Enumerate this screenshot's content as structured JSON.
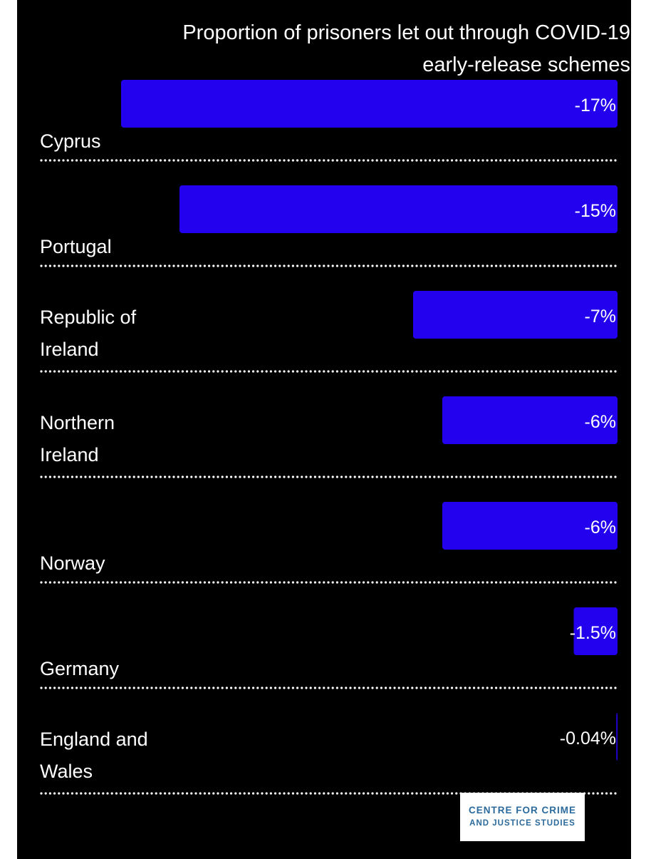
{
  "chart_data": {
    "type": "bar",
    "title": "Proportion of prisoners let out through COVID-19 early-release schemes",
    "categories": [
      "Cyprus",
      "Portugal",
      "Republic of Ireland",
      "Northern Ireland",
      "Norway",
      "Germany",
      "England and Wales"
    ],
    "category_lines": [
      [
        "Cyprus"
      ],
      [
        "Portugal"
      ],
      [
        "Republic of",
        "Ireland"
      ],
      [
        "Northern",
        "Ireland"
      ],
      [
        "Norway"
      ],
      [
        "Germany"
      ],
      [
        "England and",
        "Wales"
      ]
    ],
    "values": [
      -17,
      -15,
      -7,
      -6,
      -6,
      -1.5,
      -0.04
    ],
    "value_labels": [
      "-17%",
      "-15%",
      "-7%",
      "-6%",
      "-6%",
      "-1.5%",
      "-0.04%"
    ],
    "xlim": [
      -19,
      0
    ],
    "bar_color": "#2300ee",
    "background": "#000000",
    "text_color": "#ffffff",
    "grid": false,
    "legend": "none"
  },
  "logo": {
    "line1": "CENTRE FOR CRIME",
    "line2": "AND JUSTICE STUDIES"
  }
}
